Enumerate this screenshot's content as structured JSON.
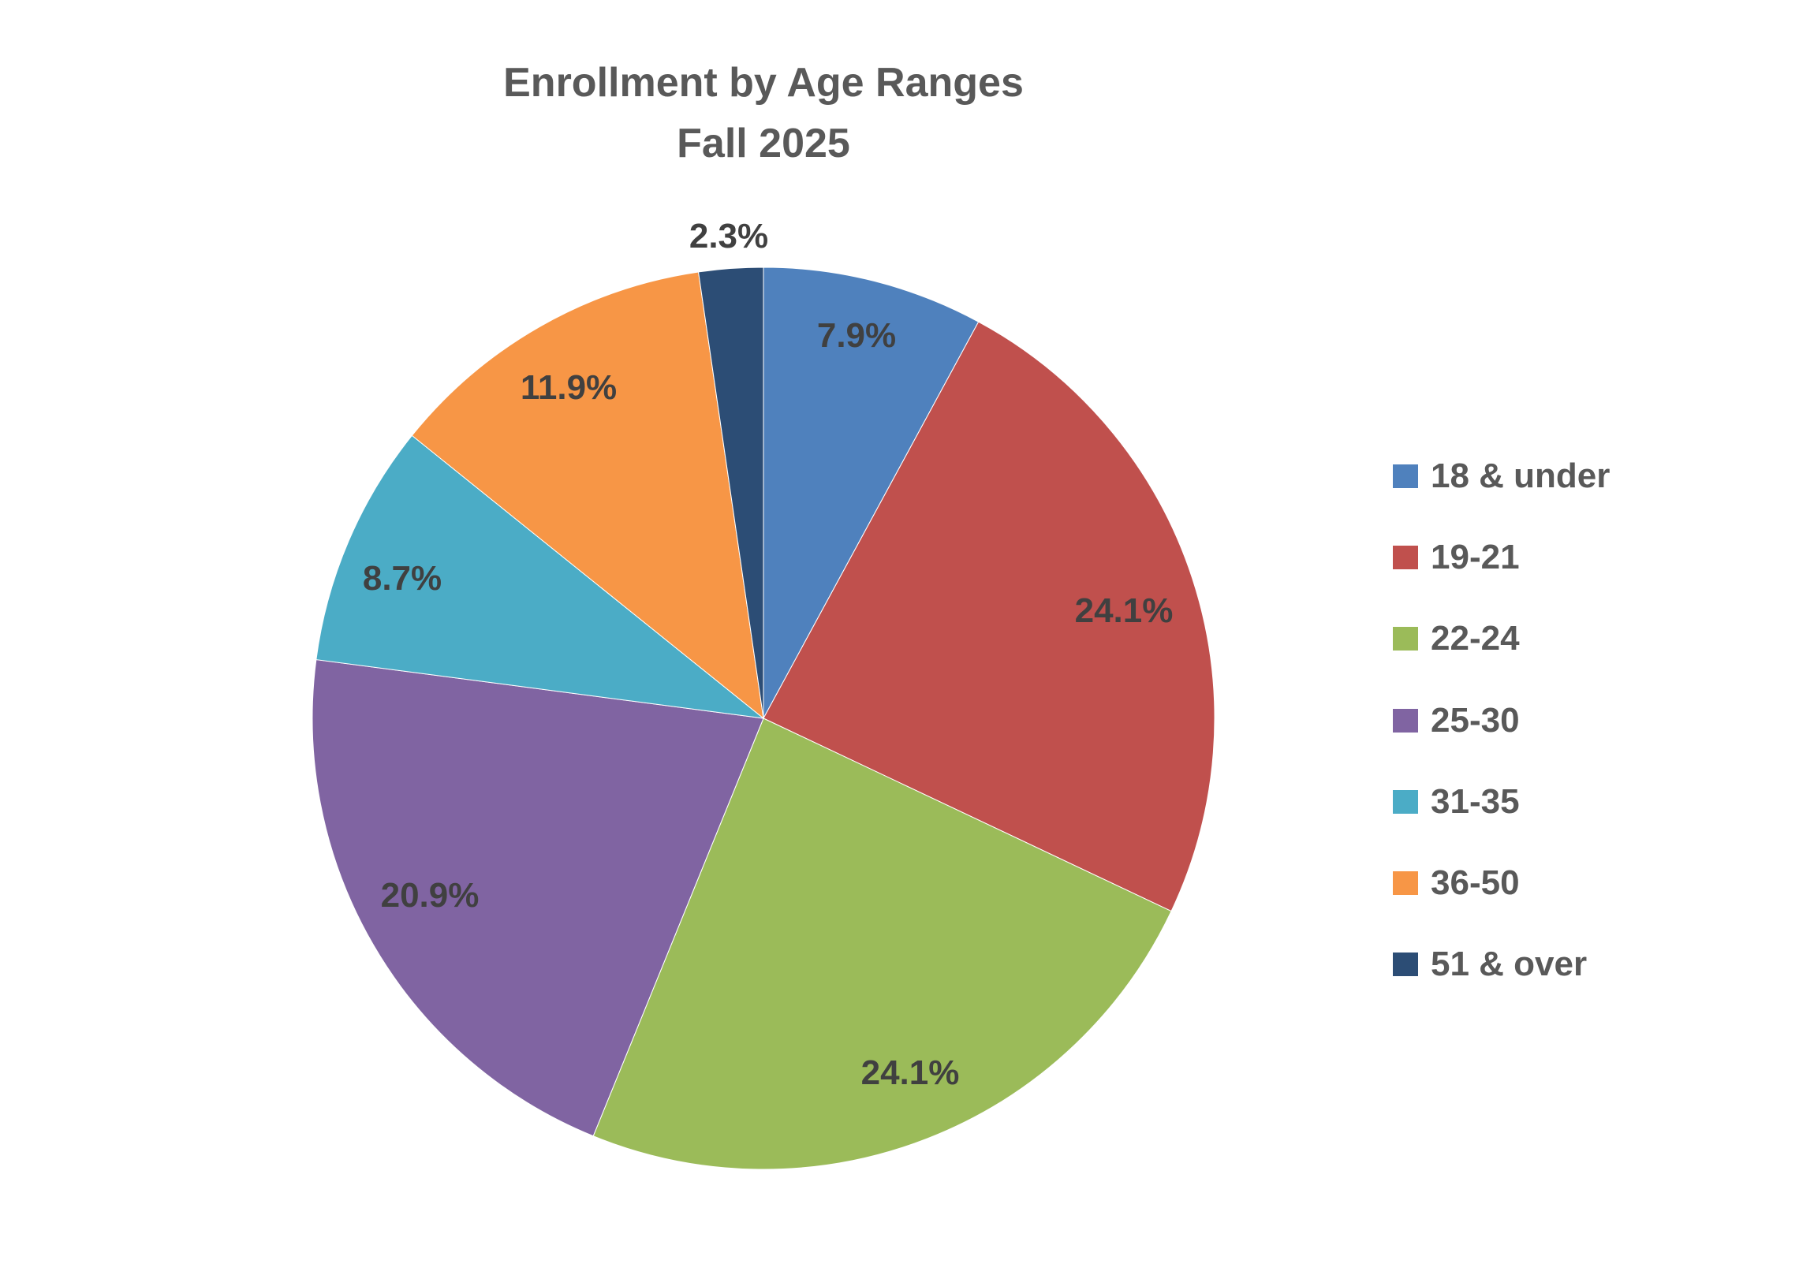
{
  "chart_data": {
    "type": "pie",
    "title": "Enrollment by Age Ranges",
    "subtitle": "Fall 2025",
    "categories": [
      "18 & under",
      "19-21",
      "22-24",
      "25-30",
      "31-35",
      "36-50",
      "51 & over"
    ],
    "values": [
      7.9,
      24.1,
      24.1,
      20.9,
      8.7,
      11.9,
      2.3
    ],
    "data_labels": [
      "7.9%",
      "24.1%",
      "24.1%",
      "20.9%",
      "8.7%",
      "11.9%",
      "2.3%"
    ],
    "colors": [
      "#4f81bd",
      "#c0504d",
      "#9bbb59",
      "#8064a2",
      "#4bacc6",
      "#f79646",
      "#2c4d75"
    ],
    "start_angle": "12 o'clock",
    "direction": "clockwise",
    "legend_position": "right"
  }
}
